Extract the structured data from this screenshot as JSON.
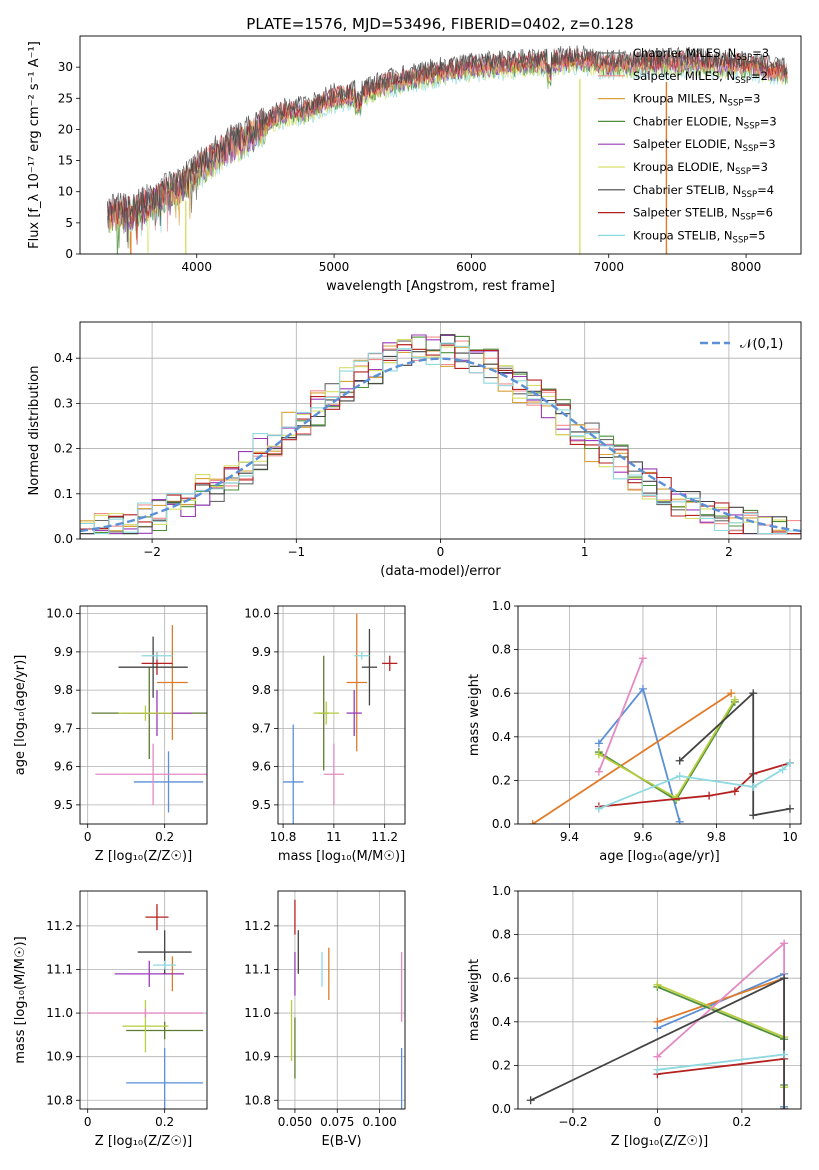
{
  "colors": {
    "Chabrier MILES": "#6a6a6a",
    "Salpeter MILES": "#f08f8f",
    "Kroupa MILES": "#d9a23a",
    "Chabrier ELODIE": "#4f8f3a",
    "Salpeter ELODIE": "#9b3bb8",
    "Kroupa ELODIE": "#d6e06a",
    "Chabrier STELIB": "#444444",
    "Salpeter STELIB": "#b52121",
    "Kroupa STELIB": "#8fd9e0",
    "gauss": "#5b8fd6",
    "blue": "#5b8fd6",
    "orange": "#e07b2a",
    "green": "#4f8f3a",
    "purple": "#9b3bb8",
    "olive": "#b7cc3f",
    "pink": "#e38ac2",
    "red": "#b52121",
    "dark": "#444444",
    "cyan": "#8fd9e0",
    "darkolive": "#5c7a30"
  },
  "chart_data": [
    {
      "id": "spectrum",
      "type": "line",
      "title": "PLATE=1576, MJD=53496, FIBERID=0402, z=0.128",
      "xlabel": "wavelength [Angstrom, rest frame]",
      "ylabel": "Flux [f_λ 10⁻¹⁷ erg cm⁻² s⁻¹ A⁻¹]",
      "xlim": [
        3150,
        8400
      ],
      "ylim": [
        0,
        35
      ],
      "xticks": [
        4000,
        5000,
        6000,
        7000,
        8000
      ],
      "yticks": [
        0,
        5,
        10,
        15,
        20,
        25,
        30
      ],
      "continuum": {
        "wavelength": [
          3350,
          3500,
          3700,
          3900,
          4000,
          4200,
          4400,
          4600,
          4800,
          5000,
          5200,
          5400,
          5600,
          5800,
          6000,
          6200,
          6400,
          6600,
          6800,
          7000,
          7200,
          7400,
          7600,
          7800,
          8000,
          8300
        ],
        "flux": [
          6.3,
          6.4,
          8.7,
          11.1,
          13.4,
          16.7,
          19.1,
          22.4,
          23.1,
          25.0,
          25.8,
          27.3,
          28.4,
          29.3,
          29.9,
          30.2,
          30.5,
          30.8,
          31.1,
          30.3,
          30.5,
          30.6,
          30.7,
          30.4,
          30.3,
          29.0
        ]
      },
      "legend": [
        "Chabrier MILES, N_SSP=3",
        "Salpeter MILES, N_SSP=2",
        "Kroupa MILES, N_SSP=3",
        "Chabrier ELODIE, N_SSP=3",
        "Salpeter ELODIE, N_SSP=3",
        "Kroupa ELODIE, N_SSP=3",
        "Chabrier STELIB, N_SSP=4",
        "Salpeter STELIB, N_SSP=6",
        "Kroupa STELIB, N_SSP=5"
      ],
      "legend_placement": "upper right"
    },
    {
      "id": "residuals",
      "type": "histogram",
      "xlabel": "(data-model)/error",
      "ylabel": "Normed distribution",
      "xlim": [
        -2.5,
        2.5
      ],
      "ylim": [
        0,
        0.48
      ],
      "xticks": [
        -2,
        -1,
        0,
        1,
        2
      ],
      "yticks": [
        0.0,
        0.1,
        0.2,
        0.3,
        0.4
      ],
      "bins": 50,
      "histogram_envelope": [
        0.02,
        0.02,
        0.04,
        0.05,
        0.06,
        0.08,
        0.11,
        0.14,
        0.17,
        0.21,
        0.25,
        0.28,
        0.31,
        0.34,
        0.36,
        0.38,
        0.395,
        0.405,
        0.41,
        0.41,
        0.405,
        0.395,
        0.38,
        0.36,
        0.34,
        0.31,
        0.28,
        0.25,
        0.21,
        0.18,
        0.15,
        0.12,
        0.1,
        0.08,
        0.06,
        0.05,
        0.04,
        0.03,
        0.025,
        0.02
      ],
      "reference": {
        "label": "𝒩(0,1)",
        "style": "dashed"
      },
      "legend_placement": "upper right"
    },
    {
      "id": "age_vs_Z",
      "type": "errorbar",
      "xlabel": "Z [log₁₀(Z/Z☉)]",
      "ylabel": "age  [log₁₀(age/yr)]",
      "xlim": [
        -0.02,
        0.31
      ],
      "ylim": [
        9.45,
        10.02
      ],
      "xticks": [
        0.0,
        0.2
      ],
      "yticks": [
        9.5,
        9.6,
        9.7,
        9.8,
        9.9,
        10.0
      ],
      "points": [
        {
          "x": 0.21,
          "xerr": 0.09,
          "y": 9.56,
          "yerr": 0.08,
          "color": "blue"
        },
        {
          "x": 0.22,
          "xerr": 0.04,
          "y": 9.82,
          "yerr": 0.15,
          "color": "orange"
        },
        {
          "x": 0.16,
          "xerr": 0.15,
          "y": 9.74,
          "yerr": 0.12,
          "color": "darkolive"
        },
        {
          "x": 0.18,
          "xerr": 0.09,
          "y": 9.74,
          "yerr": 0.06,
          "color": "purple"
        },
        {
          "x": 0.15,
          "xerr": 0.07,
          "y": 9.74,
          "yerr": 0.02,
          "color": "olive"
        },
        {
          "x": 0.17,
          "xerr": 0.15,
          "y": 9.58,
          "yerr": 0.08,
          "color": "pink"
        },
        {
          "x": 0.18,
          "xerr": 0.04,
          "y": 9.87,
          "yerr": 0.03,
          "color": "red"
        },
        {
          "x": 0.17,
          "xerr": 0.09,
          "y": 9.86,
          "yerr": 0.08,
          "color": "dark"
        },
        {
          "x": 0.18,
          "xerr": 0.04,
          "y": 9.89,
          "yerr": 0.01,
          "color": "cyan"
        }
      ]
    },
    {
      "id": "age_vs_mass",
      "type": "errorbar",
      "xlabel": "mass [log₁₀(M/M☉)]",
      "ylabel": "",
      "xlim": [
        10.78,
        11.28
      ],
      "ylim": [
        9.45,
        10.02
      ],
      "xticks": [
        10.8,
        11.0,
        11.2
      ],
      "yticks": [
        9.5,
        9.6,
        9.7,
        9.8,
        9.9,
        10.0
      ],
      "points": [
        {
          "x": 10.84,
          "xerr": 0.04,
          "y": 9.56,
          "yerr": 0.15,
          "color": "blue"
        },
        {
          "x": 11.09,
          "xerr": 0.04,
          "y": 9.82,
          "yerr": 0.18,
          "color": "orange"
        },
        {
          "x": 10.96,
          "xerr": 0.02,
          "y": 9.74,
          "yerr": 0.15,
          "color": "darkolive"
        },
        {
          "x": 11.08,
          "xerr": 0.03,
          "y": 9.74,
          "yerr": 0.06,
          "color": "purple"
        },
        {
          "x": 10.97,
          "xerr": 0.05,
          "y": 9.74,
          "yerr": 0.03,
          "color": "olive"
        },
        {
          "x": 11.0,
          "xerr": 0.04,
          "y": 9.58,
          "yerr": 0.08,
          "color": "pink"
        },
        {
          "x": 11.22,
          "xerr": 0.03,
          "y": 9.87,
          "yerr": 0.02,
          "color": "red"
        },
        {
          "x": 11.14,
          "xerr": 0.03,
          "y": 9.86,
          "yerr": 0.1,
          "color": "dark"
        },
        {
          "x": 11.11,
          "xerr": 0.03,
          "y": 9.89,
          "yerr": 0.01,
          "color": "cyan"
        }
      ]
    },
    {
      "id": "weight_vs_age",
      "type": "line",
      "xlabel": "age  [log₁₀(age/yr)]",
      "ylabel": "mass weight",
      "xlim": [
        9.26,
        10.03
      ],
      "ylim": [
        0,
        1.0
      ],
      "xticks": [
        9.4,
        9.6,
        9.8,
        10.0
      ],
      "yticks": [
        0.0,
        0.2,
        0.4,
        0.6,
        0.8,
        1.0
      ],
      "series": [
        {
          "color": "blue",
          "x": [
            9.48,
            9.6,
            9.7
          ],
          "y": [
            0.37,
            0.62,
            0.01
          ]
        },
        {
          "color": "orange",
          "x": [
            9.3,
            9.84
          ],
          "y": [
            0.0,
            0.6
          ]
        },
        {
          "color": "green",
          "x": [
            9.48,
            9.69,
            9.85
          ],
          "y": [
            0.33,
            0.11,
            0.56
          ]
        },
        {
          "color": "olive",
          "x": [
            9.48,
            9.69,
            9.85
          ],
          "y": [
            0.32,
            0.12,
            0.57
          ]
        },
        {
          "color": "pink",
          "x": [
            9.48,
            9.6
          ],
          "y": [
            0.24,
            0.76
          ]
        },
        {
          "color": "red",
          "x": [
            9.48,
            9.78,
            9.85,
            9.9,
            10.0
          ],
          "y": [
            0.08,
            0.13,
            0.15,
            0.23,
            0.28
          ]
        },
        {
          "color": "dark",
          "x": [
            9.7,
            9.9,
            9.9,
            10.0
          ],
          "y": [
            0.29,
            0.6,
            0.04,
            0.07
          ]
        },
        {
          "color": "cyan",
          "x": [
            9.48,
            9.7,
            9.9,
            9.98,
            10.0
          ],
          "y": [
            0.07,
            0.22,
            0.17,
            0.25,
            0.28
          ]
        }
      ]
    },
    {
      "id": "mass_vs_Z",
      "type": "errorbar",
      "xlabel": "Z [log₁₀(Z/Z☉)]",
      "ylabel": "mass [log₁₀(M/M☉)]",
      "xlim": [
        -0.02,
        0.31
      ],
      "ylim": [
        10.78,
        11.28
      ],
      "xticks": [
        0.0,
        0.2
      ],
      "yticks": [
        10.8,
        10.9,
        11.0,
        11.1,
        11.2
      ],
      "points": [
        {
          "x": 0.2,
          "xerr": 0.1,
          "y": 10.84,
          "yerr": 0.08,
          "color": "blue"
        },
        {
          "x": 0.22,
          "xerr": 0.03,
          "y": 11.09,
          "yerr": 0.04,
          "color": "orange"
        },
        {
          "x": 0.2,
          "xerr": 0.1,
          "y": 10.96,
          "yerr": 0.02,
          "color": "darkolive"
        },
        {
          "x": 0.16,
          "xerr": 0.09,
          "y": 11.09,
          "yerr": 0.03,
          "color": "purple"
        },
        {
          "x": 0.15,
          "xerr": 0.06,
          "y": 10.97,
          "yerr": 0.06,
          "color": "olive"
        },
        {
          "x": 0.15,
          "xerr": 0.15,
          "y": 11.0,
          "yerr": 0.01,
          "color": "pink"
        },
        {
          "x": 0.18,
          "xerr": 0.03,
          "y": 11.22,
          "yerr": 0.03,
          "color": "red"
        },
        {
          "x": 0.2,
          "xerr": 0.07,
          "y": 11.14,
          "yerr": 0.05,
          "color": "dark"
        },
        {
          "x": 0.2,
          "xerr": 0.03,
          "y": 11.11,
          "yerr": 0.01,
          "color": "cyan"
        }
      ]
    },
    {
      "id": "mass_vs_ebv",
      "type": "errorbar",
      "xlabel": "E(B-V)",
      "ylabel": "",
      "xlim": [
        0.04,
        0.115
      ],
      "ylim": [
        10.78,
        11.28
      ],
      "xticks": [
        0.05,
        0.075,
        0.1
      ],
      "xticklabels": [
        "0.050",
        "0.075",
        "0.100"
      ],
      "yticks": [
        10.8,
        10.9,
        11.0,
        11.1,
        11.2
      ],
      "points": [
        {
          "x": 0.113,
          "xerr": 0,
          "y": 10.85,
          "yerr": 0.07,
          "color": "blue"
        },
        {
          "x": 0.07,
          "xerr": 0,
          "y": 11.09,
          "yerr": 0.06,
          "color": "orange"
        },
        {
          "x": 0.05,
          "xerr": 0,
          "y": 10.92,
          "yerr": 0.07,
          "color": "darkolive"
        },
        {
          "x": 0.05,
          "xerr": 0,
          "y": 11.09,
          "yerr": 0.05,
          "color": "purple"
        },
        {
          "x": 0.048,
          "xerr": 0,
          "y": 10.96,
          "yerr": 0.07,
          "color": "olive"
        },
        {
          "x": 0.113,
          "xerr": 0,
          "y": 11.06,
          "yerr": 0.08,
          "color": "pink"
        },
        {
          "x": 0.05,
          "xerr": 0,
          "y": 11.22,
          "yerr": 0.04,
          "color": "red"
        },
        {
          "x": 0.052,
          "xerr": 0,
          "y": 11.14,
          "yerr": 0.05,
          "color": "dark"
        },
        {
          "x": 0.066,
          "xerr": 0,
          "y": 11.1,
          "yerr": 0.04,
          "color": "cyan"
        }
      ]
    },
    {
      "id": "weight_vs_Z",
      "type": "line",
      "xlabel": "Z [log₁₀(Z/Z☉)]",
      "ylabel": "mass weight",
      "xlim": [
        -0.33,
        0.34
      ],
      "ylim": [
        0,
        1.0
      ],
      "xticks": [
        -0.2,
        0.0,
        0.2
      ],
      "yticks": [
        0.0,
        0.2,
        0.4,
        0.6,
        0.8,
        1.0
      ],
      "series": [
        {
          "color": "blue",
          "x": [
            0.0,
            0.3,
            0.3
          ],
          "y": [
            0.37,
            0.62,
            0.01
          ]
        },
        {
          "color": "orange",
          "x": [
            0.0,
            0.3,
            0.3
          ],
          "y": [
            0.4,
            0.6,
            0.0
          ]
        },
        {
          "color": "green",
          "x": [
            0.0,
            0.3,
            0.3
          ],
          "y": [
            0.56,
            0.32,
            0.11
          ]
        },
        {
          "color": "olive",
          "x": [
            0.0,
            0.3,
            0.3
          ],
          "y": [
            0.57,
            0.33,
            0.1
          ]
        },
        {
          "color": "pink",
          "x": [
            0.0,
            0.3,
            0.3
          ],
          "y": [
            0.24,
            0.76,
            0.0
          ]
        },
        {
          "color": "red",
          "x": [
            0.0,
            0.3
          ],
          "y": [
            0.16,
            0.23
          ]
        },
        {
          "color": "dark",
          "x": [
            -0.3,
            0.3,
            0.3
          ],
          "y": [
            0.04,
            0.6,
            0.0
          ]
        },
        {
          "color": "cyan",
          "x": [
            0.0,
            0.3
          ],
          "y": [
            0.18,
            0.25
          ]
        }
      ]
    }
  ]
}
